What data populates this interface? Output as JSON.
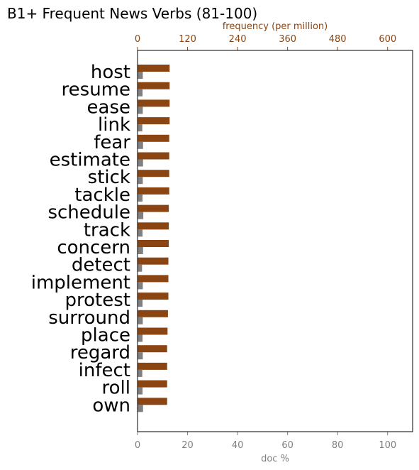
{
  "chart_data": {
    "type": "bar",
    "title": "B1+ Frequent News Verbs (81-100)",
    "categories": [
      "host",
      "resume",
      "ease",
      "link",
      "fear",
      "estimate",
      "stick",
      "tackle",
      "schedule",
      "track",
      "concern",
      "detect",
      "implement",
      "protest",
      "surround",
      "place",
      "regard",
      "infect",
      "roll",
      "own"
    ],
    "series": [
      {
        "axis": "top",
        "color": "#8b4513",
        "values": [
          77,
          77,
          77,
          77,
          76,
          76,
          76,
          76,
          75,
          75,
          75,
          74,
          74,
          74,
          73,
          72,
          71,
          71,
          71,
          71
        ]
      },
      {
        "axis": "bottom",
        "color": "#808080",
        "values": [
          2.1,
          2.0,
          2.1,
          1.9,
          2.2,
          2.2,
          2.1,
          2.0,
          2.3,
          2.0,
          2.2,
          1.8,
          2.1,
          2.0,
          2.1,
          2.0,
          2.1,
          1.9,
          2.0,
          2.2
        ]
      }
    ],
    "x_bottom": {
      "label": "doc %",
      "range": [
        0,
        110
      ],
      "ticks": [
        0,
        20,
        40,
        60,
        80,
        100
      ],
      "tick_labels": [
        "0",
        "20",
        "40",
        "60",
        "80",
        "100"
      ]
    },
    "x_top": {
      "label": "frequency (per million)",
      "range": [
        0,
        660
      ],
      "ticks": [
        0,
        120,
        240,
        360,
        480,
        600
      ],
      "tick_labels": [
        "0",
        "120",
        "240",
        "360",
        "480",
        "600"
      ]
    },
    "grid": false,
    "legend": "none"
  }
}
